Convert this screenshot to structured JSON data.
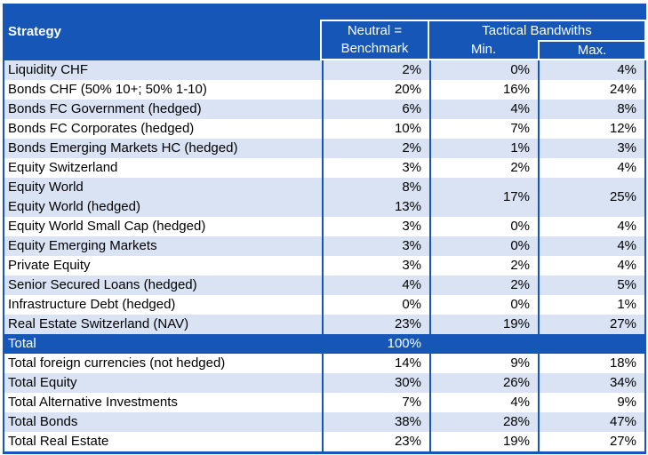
{
  "colors": {
    "header_blue": "#1656B6",
    "stripe_blue": "#D9E3F4",
    "header_text": "#FFFFFF",
    "body_text": "#000000"
  },
  "table": {
    "header": {
      "strategy_label": "Strategy",
      "neutral_line1": "Neutral =",
      "neutral_line2": "Benchmark",
      "tactical_label": "Tactical Bandwiths",
      "min_label": "Min.",
      "max_label": "Max."
    },
    "rows": [
      {
        "type": "row",
        "label": "Liquidity CHF",
        "benchmark": "2%",
        "min": "0%",
        "max": "4%",
        "shade": true
      },
      {
        "type": "row",
        "label": "Bonds CHF (50% 10+; 50% 1-10)",
        "benchmark": "20%",
        "min": "16%",
        "max": "24%",
        "shade": false
      },
      {
        "type": "row",
        "label": "Bonds FC Government (hedged)",
        "benchmark": "6%",
        "min": "4%",
        "max": "8%",
        "shade": true
      },
      {
        "type": "row",
        "label": "Bonds FC Corporates (hedged)",
        "benchmark": "10%",
        "min": "7%",
        "max": "12%",
        "shade": false
      },
      {
        "type": "row",
        "label": "Bonds Emerging Markets HC (hedged)",
        "benchmark": "2%",
        "min": "1%",
        "max": "3%",
        "shade": true
      },
      {
        "type": "row",
        "label": "Equity Switzerland",
        "benchmark": "3%",
        "min": "2%",
        "max": "4%",
        "shade": false
      },
      {
        "type": "group",
        "labels": [
          "Equity World",
          "Equity World (hedged)"
        ],
        "benchmarks": [
          "8%",
          "13%"
        ],
        "min": "17%",
        "max": "25%",
        "shade": true
      },
      {
        "type": "row",
        "label": "Equity World Small Cap (hedged)",
        "benchmark": "3%",
        "min": "0%",
        "max": "4%",
        "shade": false
      },
      {
        "type": "row",
        "label": "Equity Emerging Markets",
        "benchmark": "3%",
        "min": "0%",
        "max": "4%",
        "shade": true
      },
      {
        "type": "row",
        "label": "Private Equity",
        "benchmark": "3%",
        "min": "2%",
        "max": "4%",
        "shade": false
      },
      {
        "type": "row",
        "label": "Senior Secured Loans (hedged)",
        "benchmark": "4%",
        "min": "2%",
        "max": "5%",
        "shade": true
      },
      {
        "type": "row",
        "label": "Infrastructure Debt (hedged)",
        "benchmark": "0%",
        "min": "0%",
        "max": "1%",
        "shade": false
      },
      {
        "type": "row",
        "label": "Real Estate Switzerland (NAV)",
        "benchmark": "23%",
        "min": "19%",
        "max": "27%",
        "shade": true
      },
      {
        "type": "total",
        "label": "Total",
        "benchmark": "100%",
        "min": "",
        "max": "",
        "shade": false
      },
      {
        "type": "row",
        "label": "Total foreign currencies (not hedged)",
        "benchmark": "14%",
        "min": "9%",
        "max": "18%",
        "shade": false
      },
      {
        "type": "row",
        "label": "Total Equity",
        "benchmark": "30%",
        "min": "26%",
        "max": "34%",
        "shade": true
      },
      {
        "type": "row",
        "label": "Total Alternative Investments",
        "benchmark": "7%",
        "min": "4%",
        "max": "9%",
        "shade": false
      },
      {
        "type": "row",
        "label": "Total Bonds",
        "benchmark": "38%",
        "min": "28%",
        "max": "47%",
        "shade": true
      },
      {
        "type": "row",
        "label": "Total Real Estate",
        "benchmark": "23%",
        "min": "19%",
        "max": "27%",
        "shade": false
      }
    ]
  }
}
